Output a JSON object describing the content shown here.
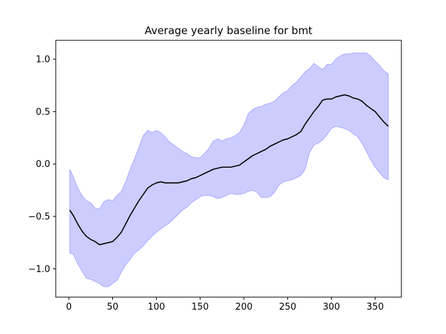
{
  "chart_data": {
    "type": "line",
    "title": "Average yearly baseline for bmt",
    "xlabel": "",
    "ylabel": "",
    "xlim": [
      -15,
      380
    ],
    "ylim": [
      -1.27,
      1.18
    ],
    "xticks": [
      0,
      50,
      100,
      150,
      200,
      250,
      300,
      350
    ],
    "yticks": [
      -1.0,
      -0.5,
      0.0,
      0.5,
      1.0
    ],
    "ytick_labels": [
      "−1.0",
      "−0.5",
      "0.0",
      "0.5",
      "1.0"
    ],
    "grid": false,
    "legend": "none",
    "colors": {
      "line": "#000000",
      "band_fill": "#ccccff",
      "band_edge": "#aaaaff"
    },
    "series": [
      {
        "x": [
          1,
          5,
          10,
          15,
          20,
          25,
          30,
          35,
          40,
          45,
          50,
          55,
          60,
          65,
          70,
          75,
          80,
          85,
          90,
          95,
          100,
          105,
          110,
          115,
          120,
          125,
          130,
          135,
          140,
          145,
          150,
          155,
          160,
          165,
          170,
          175,
          180,
          185,
          190,
          195,
          200,
          205,
          210,
          215,
          220,
          225,
          230,
          235,
          240,
          245,
          250,
          255,
          260,
          265,
          270,
          275,
          280,
          285,
          290,
          295,
          300,
          305,
          310,
          315,
          320,
          325,
          330,
          335,
          340,
          345,
          350,
          355,
          360,
          365
        ],
        "y": [
          -0.44,
          -0.49,
          -0.57,
          -0.64,
          -0.69,
          -0.72,
          -0.74,
          -0.77,
          -0.76,
          -0.75,
          -0.74,
          -0.7,
          -0.65,
          -0.57,
          -0.49,
          -0.42,
          -0.35,
          -0.29,
          -0.23,
          -0.2,
          -0.18,
          -0.17,
          -0.18,
          -0.18,
          -0.18,
          -0.18,
          -0.17,
          -0.16,
          -0.14,
          -0.13,
          -0.11,
          -0.09,
          -0.07,
          -0.05,
          -0.04,
          -0.03,
          -0.03,
          -0.03,
          -0.02,
          -0.01,
          0.02,
          0.05,
          0.08,
          0.1,
          0.12,
          0.14,
          0.17,
          0.19,
          0.21,
          0.23,
          0.24,
          0.26,
          0.28,
          0.31,
          0.38,
          0.44,
          0.5,
          0.55,
          0.61,
          0.62,
          0.62,
          0.64,
          0.65,
          0.66,
          0.65,
          0.63,
          0.62,
          0.6,
          0.56,
          0.53,
          0.5,
          0.45,
          0.4,
          0.36
        ]
      }
    ],
    "band": {
      "x": [
        1,
        5,
        10,
        15,
        20,
        25,
        30,
        35,
        40,
        45,
        50,
        55,
        60,
        65,
        70,
        75,
        80,
        85,
        90,
        95,
        100,
        105,
        110,
        115,
        120,
        125,
        130,
        135,
        140,
        145,
        150,
        155,
        160,
        165,
        170,
        175,
        180,
        185,
        190,
        195,
        200,
        205,
        210,
        215,
        220,
        225,
        230,
        235,
        240,
        245,
        250,
        255,
        260,
        265,
        270,
        275,
        280,
        285,
        290,
        295,
        300,
        305,
        310,
        315,
        320,
        325,
        330,
        335,
        340,
        345,
        350,
        355,
        360,
        365
      ],
      "upper": [
        -0.05,
        -0.12,
        -0.23,
        -0.3,
        -0.35,
        -0.37,
        -0.42,
        -0.43,
        -0.36,
        -0.34,
        -0.35,
        -0.3,
        -0.26,
        -0.17,
        -0.05,
        0.05,
        0.16,
        0.27,
        0.32,
        0.3,
        0.32,
        0.3,
        0.26,
        0.21,
        0.18,
        0.15,
        0.12,
        0.1,
        0.07,
        0.06,
        0.06,
        0.1,
        0.15,
        0.22,
        0.24,
        0.22,
        0.24,
        0.25,
        0.27,
        0.3,
        0.37,
        0.48,
        0.52,
        0.54,
        0.55,
        0.57,
        0.58,
        0.6,
        0.64,
        0.68,
        0.7,
        0.75,
        0.78,
        0.83,
        0.88,
        0.91,
        0.96,
        0.93,
        0.9,
        0.95,
        0.95,
        1.0,
        1.03,
        1.05,
        1.05,
        1.06,
        1.06,
        1.06,
        1.06,
        1.03,
        0.98,
        0.94,
        0.89,
        0.86
      ],
      "lower": [
        -0.85,
        -0.86,
        -0.95,
        -1.02,
        -1.09,
        -1.1,
        -1.12,
        -1.14,
        -1.17,
        -1.17,
        -1.14,
        -1.11,
        -1.03,
        -0.96,
        -0.91,
        -0.85,
        -0.82,
        -0.78,
        -0.73,
        -0.69,
        -0.65,
        -0.62,
        -0.59,
        -0.56,
        -0.52,
        -0.48,
        -0.44,
        -0.41,
        -0.37,
        -0.34,
        -0.31,
        -0.3,
        -0.3,
        -0.31,
        -0.33,
        -0.32,
        -0.3,
        -0.28,
        -0.29,
        -0.29,
        -0.28,
        -0.26,
        -0.25,
        -0.27,
        -0.32,
        -0.32,
        -0.31,
        -0.27,
        -0.2,
        -0.17,
        -0.16,
        -0.15,
        -0.13,
        -0.11,
        -0.05,
        0.11,
        0.18,
        0.2,
        0.23,
        0.28,
        0.34,
        0.36,
        0.35,
        0.34,
        0.32,
        0.29,
        0.26,
        0.2,
        0.12,
        0.04,
        -0.03,
        -0.08,
        -0.13,
        -0.15
      ]
    }
  }
}
